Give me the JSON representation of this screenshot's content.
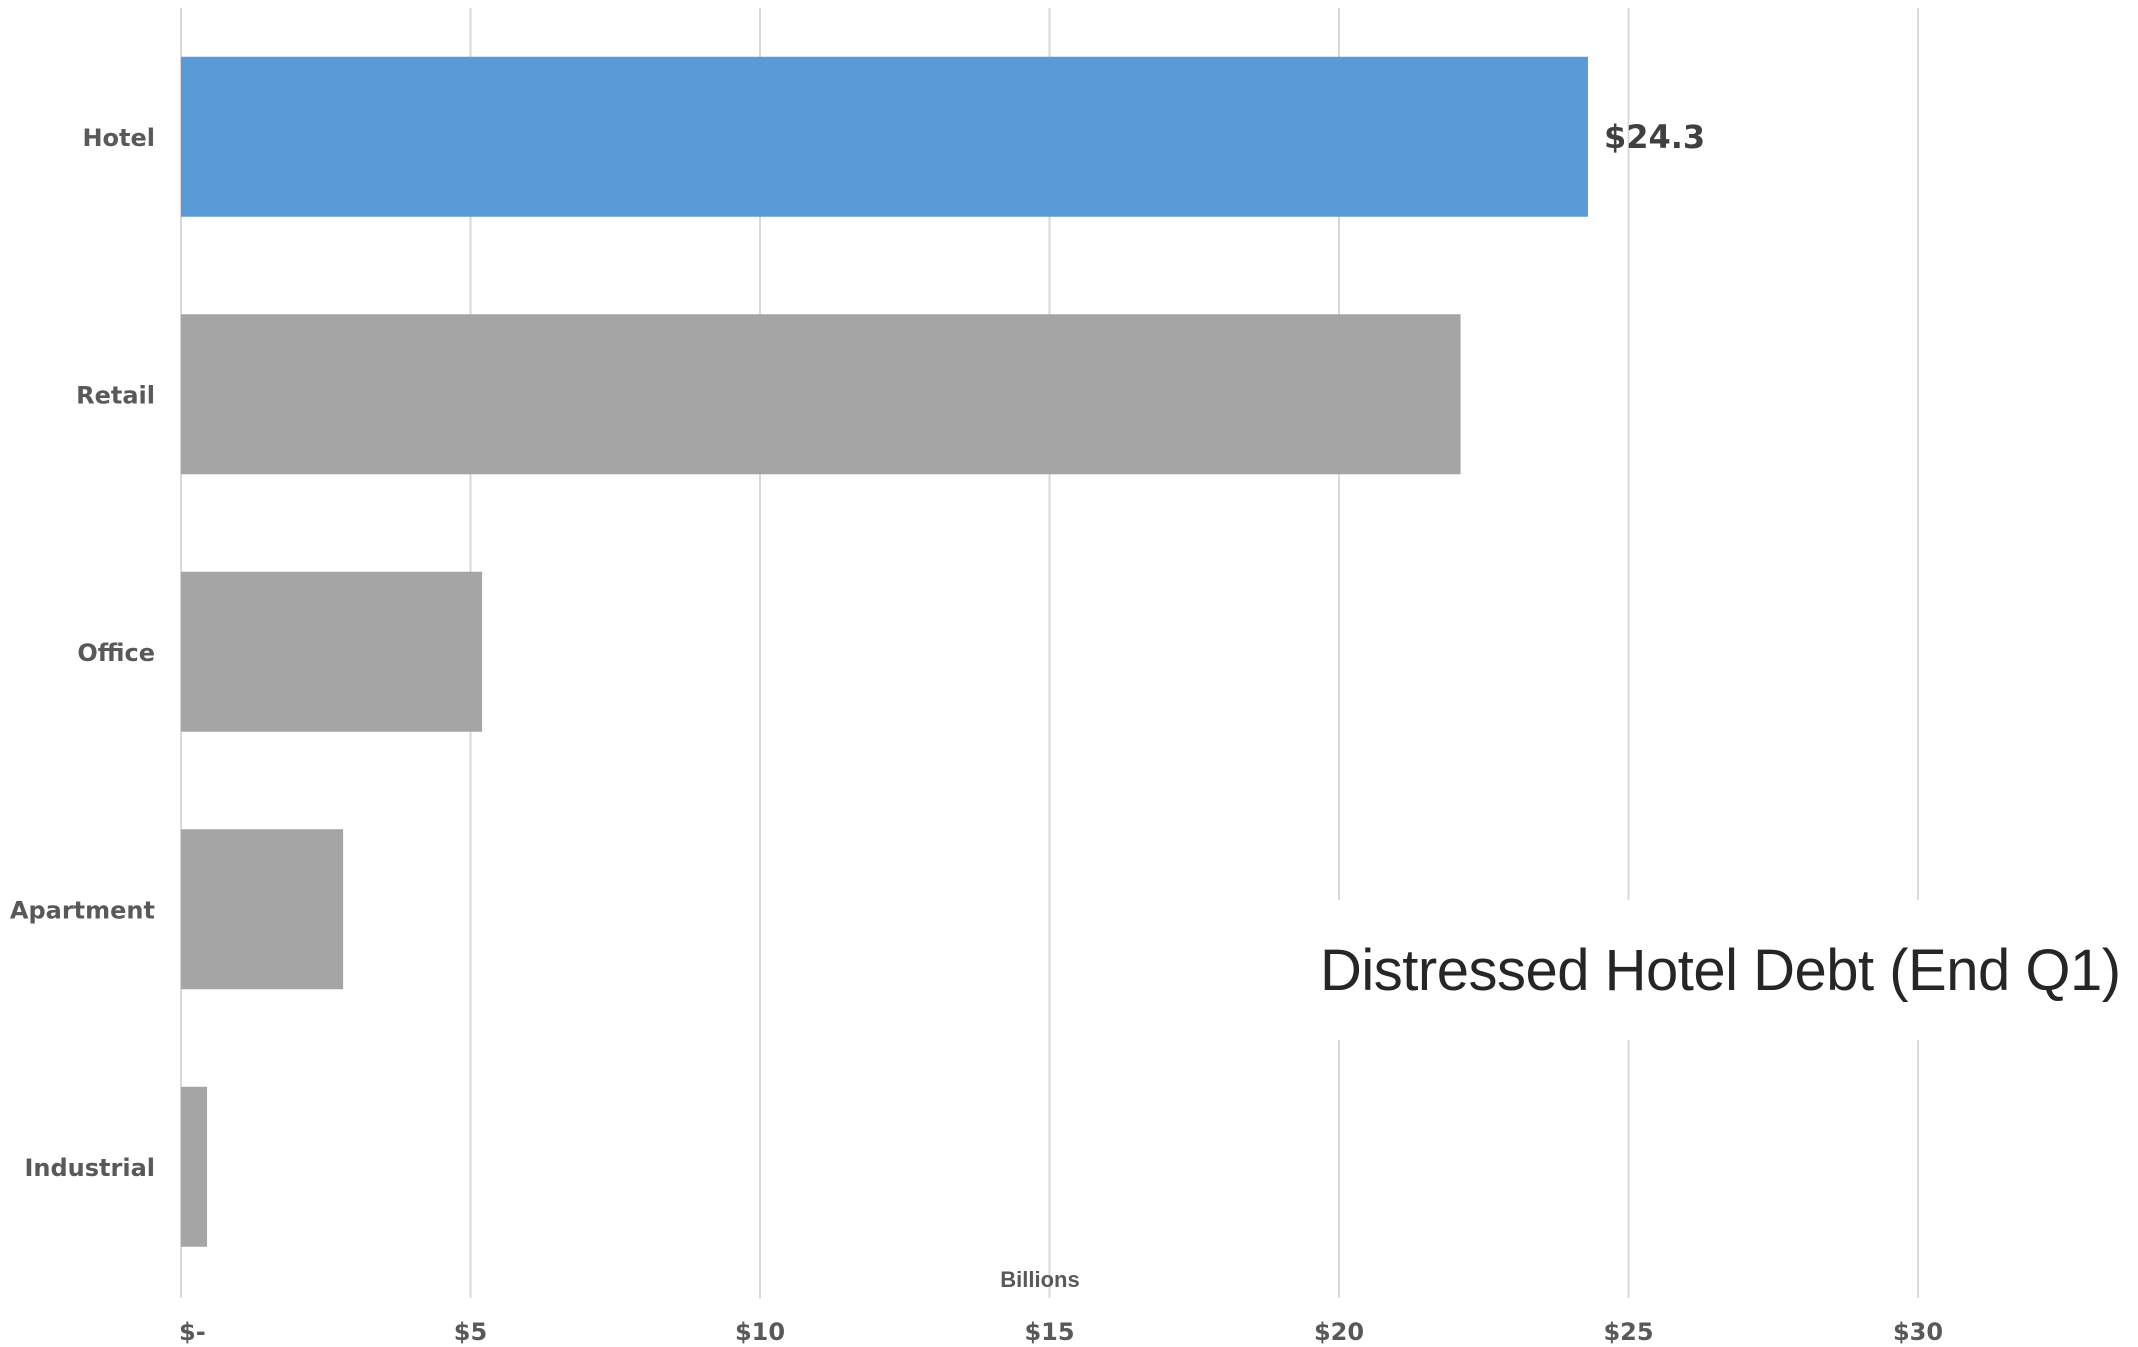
{
  "chart_data": {
    "type": "bar",
    "orientation": "horizontal",
    "title": "Distressed Hotel Debt (End Q1)",
    "xlabel": "Billions",
    "ylabel": "",
    "categories": [
      "Hotel",
      "Retail",
      "Office",
      "Apartment",
      "Industrial"
    ],
    "values": [
      24.3,
      22.1,
      5.2,
      2.8,
      0.45
    ],
    "data_labels": [
      "$24.3",
      "",
      "",
      "",
      ""
    ],
    "xlim": [
      0,
      32.5
    ],
    "x_ticks": [
      0,
      5,
      10,
      15,
      20,
      25,
      30
    ],
    "x_tick_labels": [
      "$-",
      "$5",
      "$10",
      "$15",
      "$20",
      "$25",
      "$30"
    ],
    "grid": "vertical",
    "legend": "none",
    "colors": {
      "highlight": "#5B9BD5",
      "default": "#A5A5A5",
      "grid": "#D9D9D9"
    },
    "highlight_index": 0
  }
}
